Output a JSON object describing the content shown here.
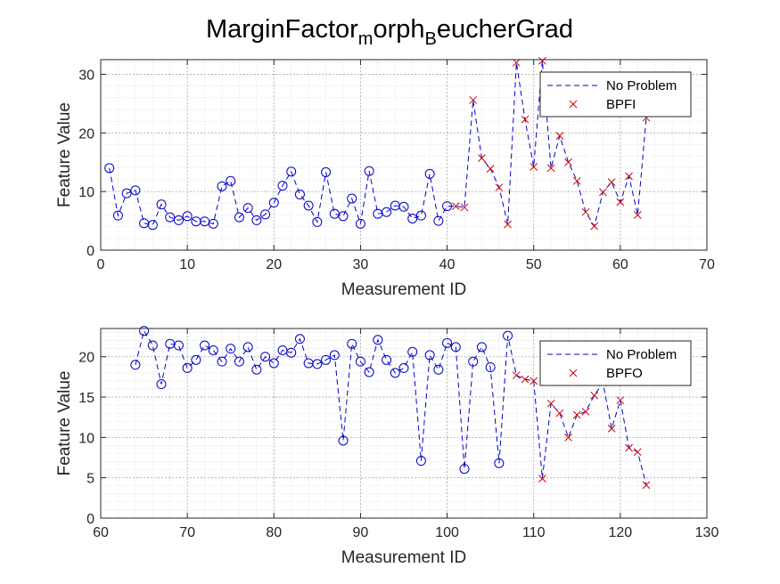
{
  "title": {
    "parts": [
      "MarginFactor",
      "m",
      "orph",
      "B",
      "eucherGrad"
    ]
  },
  "chart_data": [
    {
      "type": "line",
      "xlabel": "Measurement ID",
      "ylabel": "Feature Value",
      "xlim": [
        0,
        70
      ],
      "ylim": [
        0,
        32.5
      ],
      "xticks": [
        0,
        10,
        20,
        30,
        40,
        50,
        60,
        70
      ],
      "yticks": [
        0,
        10,
        20,
        30
      ],
      "grid": true,
      "minor_grid": true,
      "legend": {
        "position": "top-right",
        "entries": [
          "No Problem",
          "BPFI"
        ]
      },
      "line": {
        "name": "No Problem",
        "style": "dashed",
        "color": "#0000CC"
      },
      "series": [
        {
          "name": "No Problem",
          "marker": "circle",
          "color": "#0000CC",
          "points": [
            [
              1,
              14
            ],
            [
              2,
              5.9
            ],
            [
              3,
              9.7
            ],
            [
              4,
              10.2
            ],
            [
              5,
              4.6
            ],
            [
              6,
              4.3
            ],
            [
              7,
              7.8
            ],
            [
              8,
              5.6
            ],
            [
              9,
              5.1
            ],
            [
              10,
              5.8
            ],
            [
              11,
              4.9
            ],
            [
              12,
              4.9
            ],
            [
              13,
              4.5
            ],
            [
              14,
              10.9
            ],
            [
              15,
              11.8
            ],
            [
              16,
              5.6
            ],
            [
              17,
              7.2
            ],
            [
              18,
              5.1
            ],
            [
              19,
              6.1
            ],
            [
              20,
              8.1
            ],
            [
              21,
              11
            ],
            [
              22,
              13.4
            ],
            [
              23,
              9.5
            ],
            [
              24,
              7.6
            ],
            [
              25,
              4.8
            ],
            [
              26,
              13.3
            ],
            [
              27,
              6.2
            ],
            [
              28,
              5.8
            ],
            [
              29,
              8.8
            ],
            [
              30,
              4.5
            ],
            [
              31,
              13.5
            ],
            [
              32,
              6.2
            ],
            [
              33,
              6.5
            ],
            [
              34,
              7.6
            ],
            [
              35,
              7.4
            ],
            [
              36,
              5.4
            ],
            [
              37,
              5.9
            ],
            [
              38,
              13
            ],
            [
              39,
              5
            ],
            [
              40,
              7.5
            ]
          ]
        },
        {
          "name": "BPFI",
          "marker": "x",
          "color": "#CC0000",
          "points": [
            [
              41,
              7.5
            ],
            [
              42,
              7.3
            ],
            [
              43,
              25.6
            ],
            [
              44,
              15.7
            ],
            [
              45,
              13.9
            ],
            [
              46,
              10.7
            ],
            [
              47,
              4.4
            ],
            [
              48,
              32
            ],
            [
              49,
              22.3
            ],
            [
              50,
              14.2
            ],
            [
              51,
              32.3
            ],
            [
              52,
              14
            ],
            [
              53,
              19.5
            ],
            [
              54,
              15
            ],
            [
              55,
              11.8
            ],
            [
              56,
              6.5
            ],
            [
              57,
              4.1
            ],
            [
              58,
              9.9
            ],
            [
              59,
              11.6
            ],
            [
              60,
              8.2
            ],
            [
              61,
              12.6
            ],
            [
              62,
              6
            ],
            [
              63,
              22.6
            ]
          ]
        }
      ]
    },
    {
      "type": "line",
      "xlabel": "Measurement ID",
      "ylabel": "Feature Value",
      "xlim": [
        60,
        130
      ],
      "ylim": [
        0,
        23.5
      ],
      "xticks": [
        60,
        70,
        80,
        90,
        100,
        110,
        120,
        130
      ],
      "yticks": [
        0,
        5,
        10,
        15,
        20
      ],
      "grid": true,
      "minor_grid": true,
      "legend": {
        "position": "top-right",
        "entries": [
          "No Problem",
          "BPFO"
        ]
      },
      "line": {
        "name": "No Problem",
        "style": "dashed",
        "color": "#0000CC"
      },
      "series": [
        {
          "name": "No Problem",
          "marker": "circle",
          "color": "#0000CC",
          "points": [
            [
              64,
              19
            ],
            [
              65,
              23.2
            ],
            [
              66,
              21.4
            ],
            [
              67,
              16.6
            ],
            [
              68,
              21.6
            ],
            [
              69,
              21.4
            ],
            [
              70,
              18.6
            ],
            [
              71,
              19.6
            ],
            [
              72,
              21.4
            ],
            [
              73,
              20.8
            ],
            [
              74,
              19.4
            ],
            [
              75,
              21
            ],
            [
              76,
              19.4
            ],
            [
              77,
              21.2
            ],
            [
              78,
              18.4
            ],
            [
              79,
              20
            ],
            [
              80,
              19.2
            ],
            [
              81,
              20.8
            ],
            [
              82,
              20.5
            ],
            [
              83,
              22.2
            ],
            [
              84,
              19.2
            ],
            [
              85,
              19.1
            ],
            [
              86,
              19.6
            ],
            [
              87,
              20.2
            ],
            [
              88,
              9.6
            ],
            [
              89,
              21.6
            ],
            [
              90,
              19.4
            ],
            [
              91,
              18.1
            ],
            [
              92,
              22.1
            ],
            [
              93,
              19.6
            ],
            [
              94,
              18
            ],
            [
              95,
              18.6
            ],
            [
              96,
              20.6
            ],
            [
              97,
              7.1
            ],
            [
              98,
              20.2
            ],
            [
              99,
              18.4
            ],
            [
              100,
              21.7
            ],
            [
              101,
              21.2
            ],
            [
              102,
              6.1
            ],
            [
              103,
              19.4
            ],
            [
              104,
              21.2
            ],
            [
              105,
              18.7
            ],
            [
              106,
              6.8
            ],
            [
              107,
              22.6
            ]
          ]
        },
        {
          "name": "BPFO",
          "marker": "x",
          "color": "#CC0000",
          "points": [
            [
              108,
              17.7
            ],
            [
              109,
              17.2
            ],
            [
              110,
              17
            ],
            [
              111,
              4.9
            ],
            [
              112,
              14.2
            ],
            [
              113,
              13
            ],
            [
              114,
              10
            ],
            [
              115,
              12.8
            ],
            [
              116,
              13.2
            ],
            [
              117,
              15.2
            ],
            [
              118,
              16.8
            ],
            [
              119,
              11.1
            ],
            [
              120,
              14.6
            ],
            [
              121,
              8.7
            ],
            [
              122,
              8.2
            ],
            [
              123,
              4.1
            ]
          ]
        }
      ]
    }
  ]
}
